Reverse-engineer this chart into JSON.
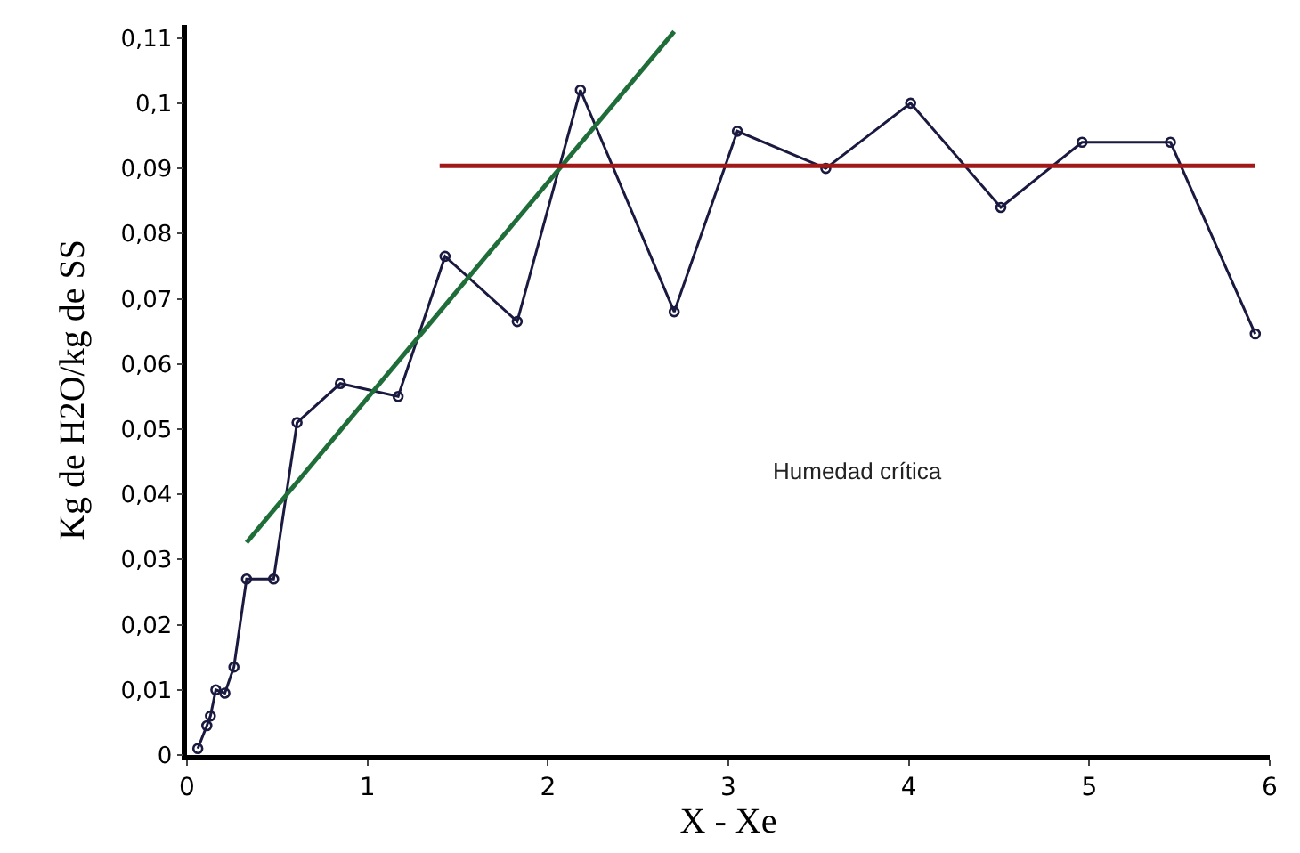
{
  "chart_data": {
    "type": "line",
    "xlabel": "X - Xe",
    "ylabel": "Kg de H2O/kg de SS",
    "xlim": [
      0,
      6
    ],
    "xticks": [
      0,
      1,
      2,
      3,
      4,
      5,
      6
    ],
    "ylim": [
      0,
      0.112
    ],
    "yticks": [
      0,
      {
        "value": 0.01,
        "label": "0,01"
      },
      {
        "value": 0.02,
        "label": "0,02"
      },
      {
        "value": 0.03,
        "label": "0,03"
      },
      {
        "value": 0.04,
        "label": "0,04"
      },
      {
        "value": 0.05,
        "label": "0,05"
      },
      {
        "value": 0.06,
        "label": "0,06"
      },
      {
        "value": 0.07,
        "label": "0,07"
      },
      {
        "value": 0.08,
        "label": "0,08"
      },
      {
        "value": 0.09,
        "label": "0,09"
      },
      {
        "value": 0.1,
        "label": "0,1"
      },
      {
        "value": 0.11,
        "label": "0,11"
      }
    ],
    "series": [
      {
        "color": "#1a1a40",
        "marker": "circle",
        "x": [
          0.06,
          0.11,
          0.13,
          0.16,
          0.21,
          0.26,
          0.33,
          0.48,
          0.61,
          0.85,
          1.17,
          1.43,
          1.83,
          2.18,
          2.7,
          3.05,
          3.54,
          4.01,
          4.51,
          4.96,
          5.45,
          5.92
        ],
        "values": [
          0.001,
          0.0045,
          0.006,
          0.01,
          0.0095,
          0.0135,
          0.027,
          0.027,
          0.051,
          0.057,
          0.055,
          0.0765,
          0.0665,
          0.102,
          0.068,
          0.0957,
          0.09,
          0.1,
          0.084,
          0.094,
          0.094,
          0.0646
        ]
      },
      {
        "color": "#1f6e3a",
        "marker": "none",
        "x": [
          0.33,
          2.7
        ],
        "values": [
          0.0326,
          0.111
        ]
      },
      {
        "color": "#a01818",
        "marker": "none",
        "x": [
          1.4,
          5.92
        ],
        "values": [
          0.0904,
          0.0904
        ]
      }
    ],
    "annotations": [
      "Humedad crítica"
    ]
  }
}
